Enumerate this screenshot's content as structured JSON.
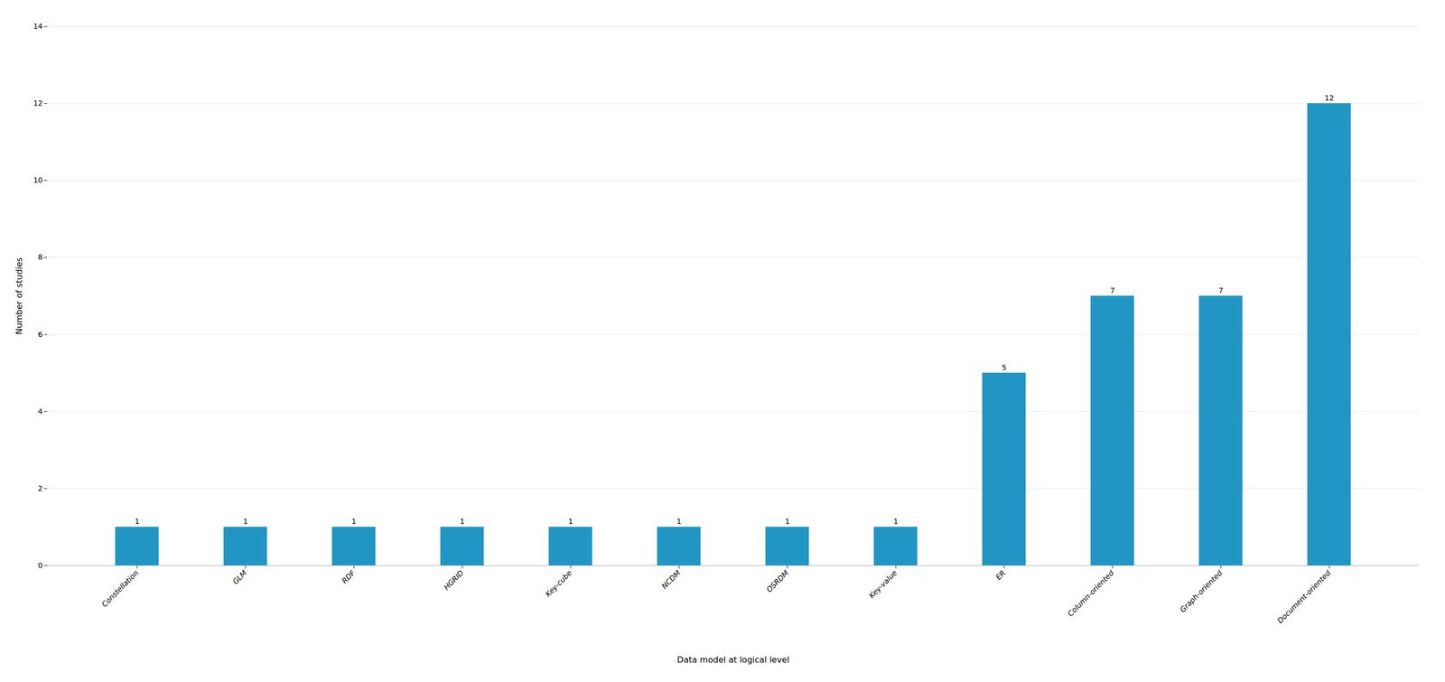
{
  "chart_data": {
    "type": "bar",
    "categories": [
      "Constellation",
      "GLM",
      "RDF",
      "HGRID",
      "Key-cube",
      "NCDM",
      "OSRDM",
      "Key-value",
      "ER",
      "Column-oriented",
      "Graph-oriented",
      "Document-oriented"
    ],
    "values": [
      1,
      1,
      1,
      1,
      1,
      1,
      1,
      1,
      5,
      7,
      7,
      12
    ],
    "color": "#2196C4",
    "xlabel": "Data model at logical level",
    "ylabel": "Number of studies",
    "ylim": [
      0,
      14
    ],
    "yticks": [
      0,
      2,
      4,
      6,
      8,
      10,
      12,
      14
    ],
    "grid": true,
    "data_labels": true
  }
}
